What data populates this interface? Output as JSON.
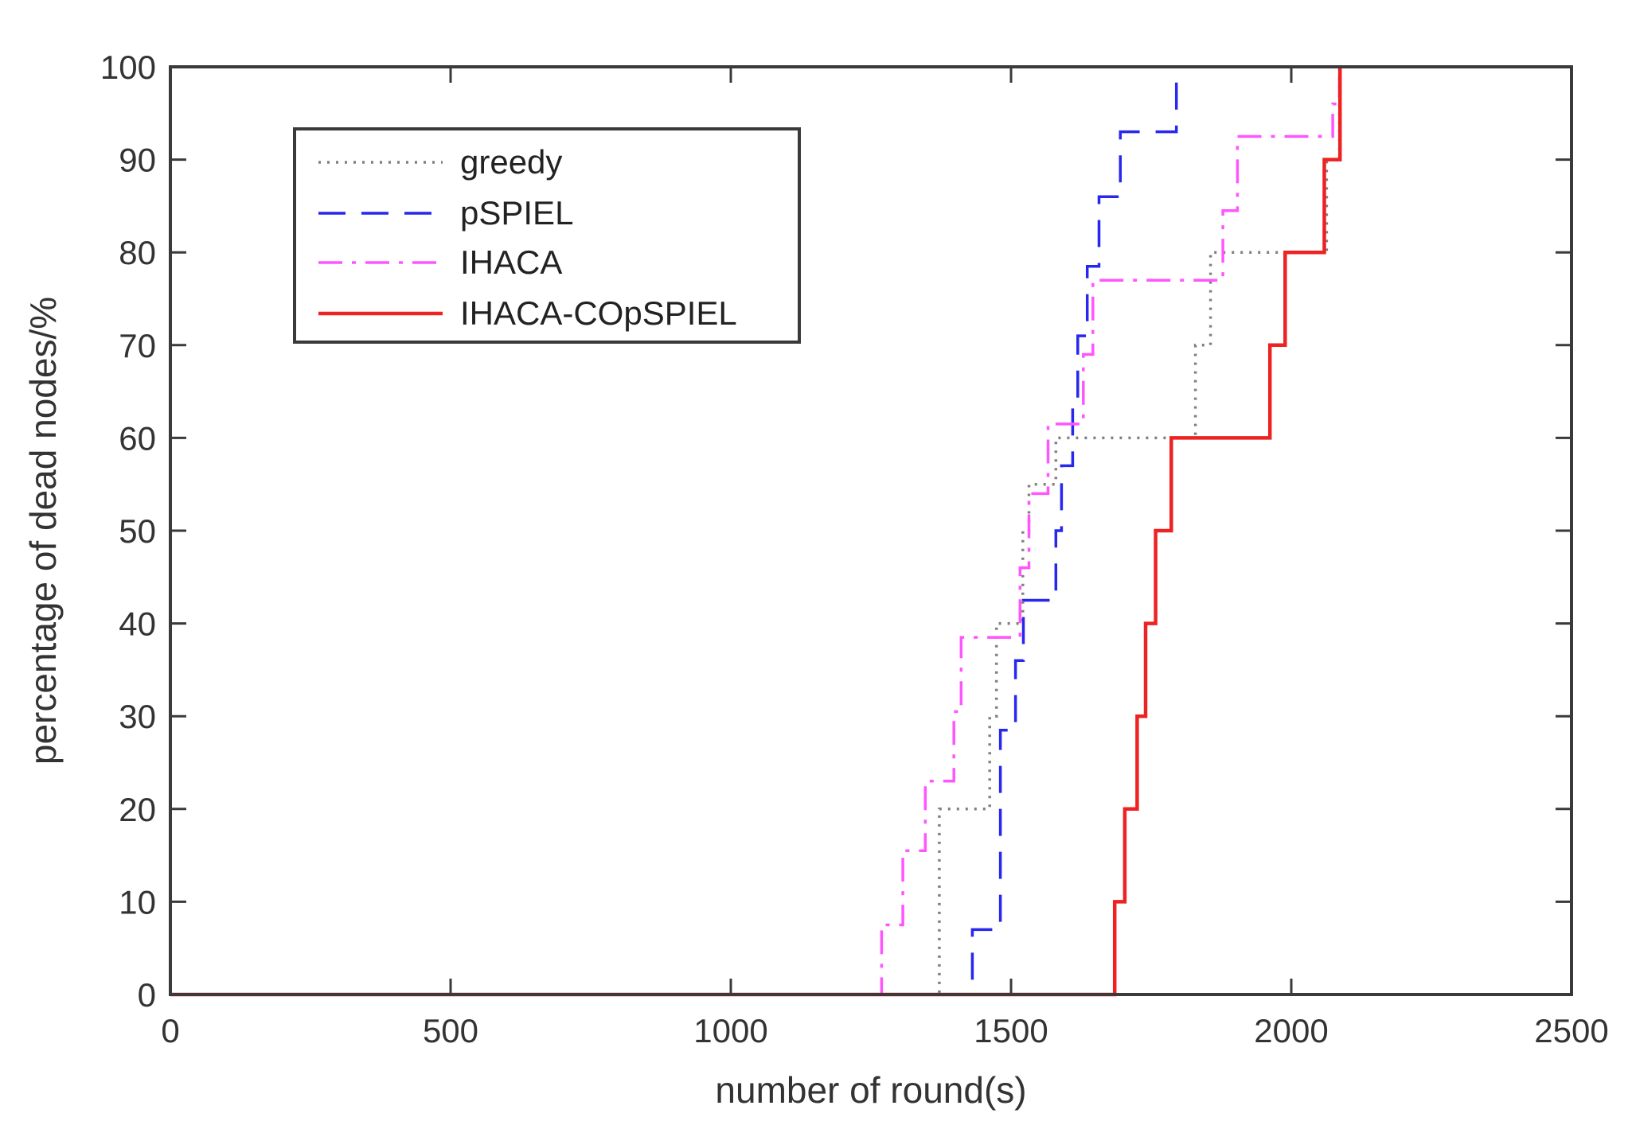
{
  "chart_data": {
    "type": "line",
    "title": "",
    "xlabel": "number of round(s)",
    "ylabel": "percentage of dead nodes/%",
    "xlim": [
      0,
      2500
    ],
    "ylim": [
      0,
      100
    ],
    "xticks": [
      0,
      500,
      1000,
      1500,
      2000,
      2500
    ],
    "yticks": [
      0,
      10,
      20,
      30,
      40,
      50,
      60,
      70,
      80,
      90,
      100
    ],
    "xtick_labels": [
      "0",
      "500",
      "1000",
      "1500",
      "2000",
      "2500"
    ],
    "ytick_labels": [
      "0",
      "10",
      "20",
      "30",
      "40",
      "50",
      "60",
      "70",
      "80",
      "90",
      "100"
    ],
    "grid": false,
    "legend_position": "top-left",
    "series": [
      {
        "name": "greedy",
        "color": "#808080",
        "style": "dotted",
        "x": [
          0,
          1372,
          1372,
          1462,
          1462,
          1474,
          1474,
          1521,
          1521,
          1532,
          1532,
          1580,
          1580,
          1590,
          1590,
          1829,
          1829,
          1856,
          1856,
          1873,
          1873,
          2063,
          2063,
          2075,
          2075,
          2086,
          2086
        ],
        "y": [
          0,
          0,
          20,
          20,
          30,
          30,
          40,
          40,
          50,
          50,
          55,
          55,
          60,
          60,
          60,
          60,
          70,
          70,
          80,
          80,
          80,
          80,
          90,
          90,
          90,
          90,
          100
        ]
      },
      {
        "name": "pSPIEL",
        "color": "#2727ee",
        "style": "dashed",
        "x": [
          0,
          1431,
          1431,
          1481,
          1481,
          1508,
          1508,
          1522,
          1522,
          1580,
          1580,
          1590,
          1590,
          1610,
          1610,
          1619,
          1619,
          1636,
          1636,
          1657,
          1657,
          1674,
          1674,
          1695,
          1695,
          1744,
          1744,
          1795,
          1795,
          1906,
          1906
        ],
        "y": [
          0,
          0,
          7,
          7,
          28.5,
          28.5,
          36,
          36,
          42.5,
          42.5,
          50,
          50,
          57,
          57,
          64,
          64,
          71,
          71,
          78.5,
          78.5,
          86,
          86,
          86,
          86,
          93,
          93,
          93,
          93,
          100,
          100,
          100
        ]
      },
      {
        "name": "IHACA",
        "color": "#ff55ff",
        "style": "dashdot",
        "x": [
          0,
          1269,
          1269,
          1307,
          1307,
          1347,
          1347,
          1398,
          1398,
          1411,
          1411,
          1516,
          1516,
          1532,
          1532,
          1566,
          1566,
          1629,
          1629,
          1646,
          1646,
          1878,
          1878,
          1904,
          1904,
          2074,
          2074,
          2086,
          2086
        ],
        "y": [
          0,
          0,
          7.5,
          7.5,
          15.5,
          15.5,
          23,
          23,
          30.5,
          30.5,
          38.5,
          38.5,
          46,
          46,
          54,
          54,
          61.5,
          61.5,
          69,
          69,
          77,
          77,
          84.5,
          84.5,
          92.5,
          92.5,
          96,
          96,
          100
        ]
      },
      {
        "name": "IHACA-COpSPIEL",
        "color": "#ee2222",
        "style": "solid",
        "x": [
          0,
          1685,
          1685,
          1703,
          1703,
          1725,
          1725,
          1740,
          1740,
          1758,
          1758,
          1786,
          1786,
          1962,
          1962,
          1989,
          1989,
          2059,
          2059,
          2075,
          2075,
          2087,
          2087
        ],
        "y": [
          0,
          0,
          10,
          10,
          20,
          20,
          30,
          30,
          40,
          40,
          50,
          50,
          60,
          60,
          70,
          70,
          80,
          80,
          90,
          90,
          90,
          90,
          100
        ]
      }
    ]
  }
}
